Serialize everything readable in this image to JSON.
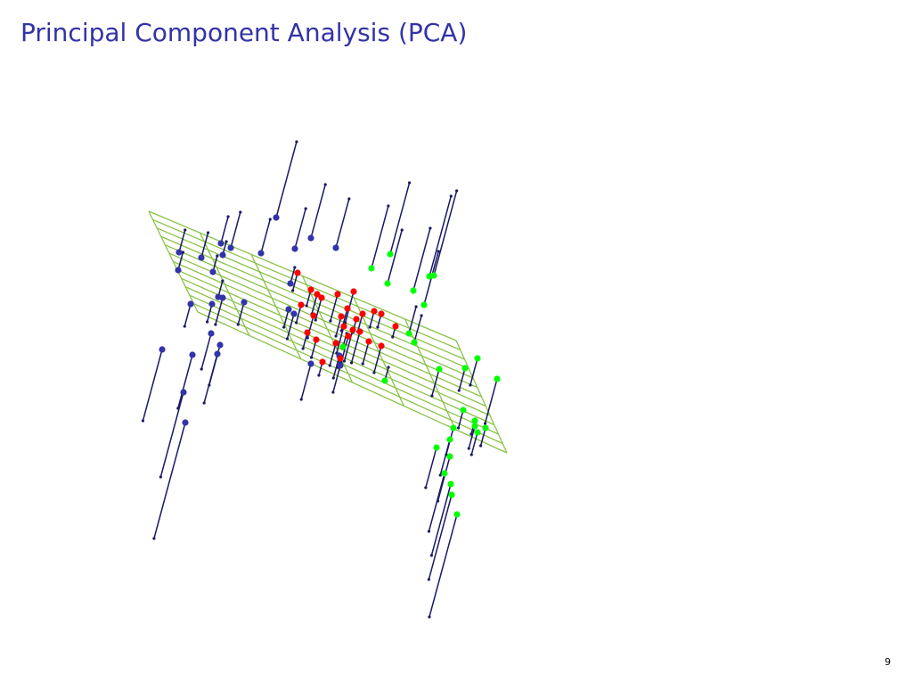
{
  "slide": {
    "title": "Principal Component Analysis (PCA)",
    "page_number": "9"
  },
  "colors": {
    "title": "#3333a8",
    "plane": "#8bc34a",
    "projection_line": "#1a1a66",
    "class_a": "#3333aa",
    "class_b": "#ff0000",
    "class_c": "#00ff00"
  }
}
